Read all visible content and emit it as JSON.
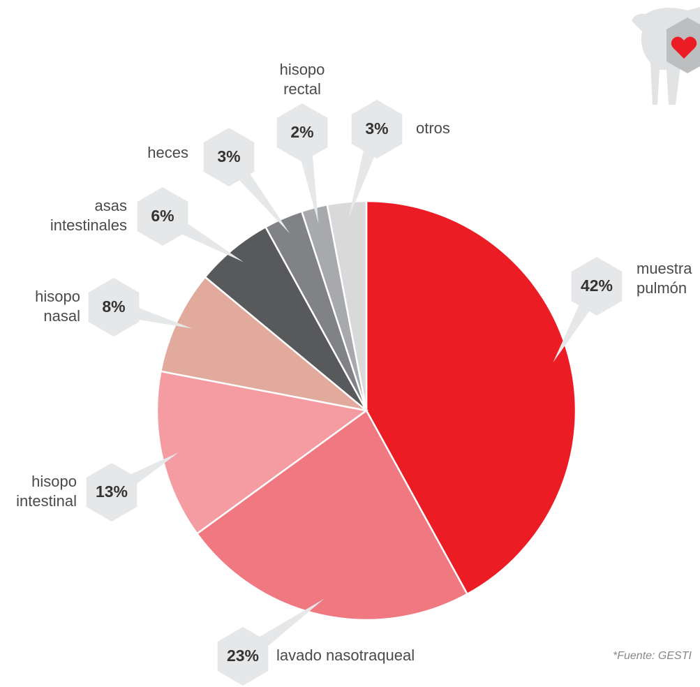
{
  "chart_data": {
    "type": "pie",
    "categories": [
      "muestra\npulmón",
      "lavado nasotraqueal",
      "hisopo\nintestinal",
      "hisopo\nnasal",
      "asas\nintestinales",
      "heces",
      "hisopo\nrectal",
      "otros"
    ],
    "values": [
      42,
      23,
      13,
      8,
      6,
      3,
      2,
      3
    ],
    "value_labels": [
      "42%",
      "23%",
      "13%",
      "8%",
      "6%",
      "3%",
      "2%",
      "3%"
    ],
    "colors": [
      "#ec1c24",
      "#f07880",
      "#f59ca2",
      "#e2aa9c",
      "#58595b",
      "#808285",
      "#a7a9ac",
      "#d9d9d9"
    ],
    "source": "*Fuente: GESTI"
  }
}
